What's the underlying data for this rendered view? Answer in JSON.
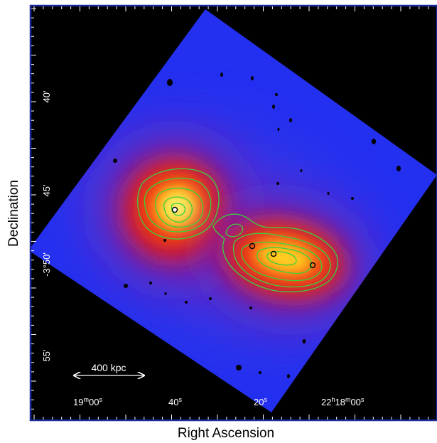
{
  "axes": {
    "xlabel": "Right Ascension",
    "ylabel": "Declination",
    "ra_ticks": [
      {
        "h": "",
        "m": "19",
        "s": "00"
      },
      {
        "h": "",
        "m": "",
        "s": "40"
      },
      {
        "h": "",
        "m": "",
        "s": "20"
      },
      {
        "h": "22",
        "m": "18",
        "s": "00"
      }
    ],
    "dec_ticks": [
      "40'",
      "45'",
      "-3°50'",
      "55'"
    ]
  },
  "scale_bar": {
    "label": "400 kpc"
  },
  "colors": {
    "background": "#000000",
    "field": "#2430f0",
    "axis_frame": "#1a2a9a",
    "contour": "#3ad13a",
    "marker": "#000000"
  },
  "objects": [
    {
      "name": "east-cluster",
      "markers": 1
    },
    {
      "name": "west-cluster",
      "markers": 3
    }
  ]
}
